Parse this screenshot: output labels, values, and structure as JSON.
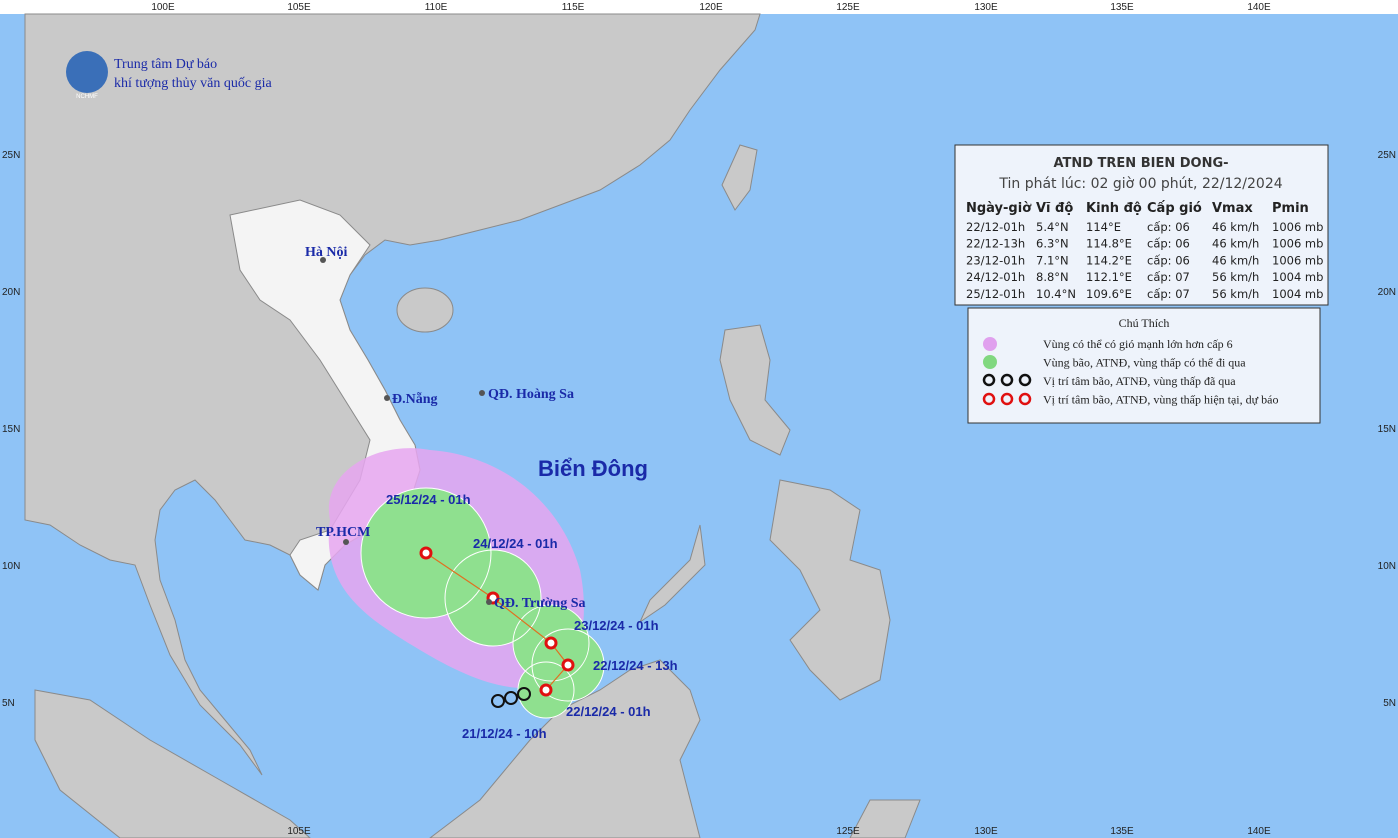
{
  "logo": {
    "line1": "Trung tâm Dự báo",
    "line2": "khí tượng thủy văn quốc gia",
    "abbr": "NCHMF"
  },
  "axes": {
    "top": [
      "100E",
      "105E",
      "110E",
      "115E",
      "120E",
      "125E",
      "130E",
      "135E",
      "140E"
    ],
    "bottom": [
      "105E",
      "125E",
      "130E",
      "135E",
      "140E"
    ],
    "left": [
      "25N",
      "20N",
      "15N",
      "10N",
      "5N"
    ],
    "right": [
      "25N",
      "20N",
      "15N",
      "10N",
      "5N"
    ]
  },
  "places": [
    "Hà Nội",
    "Đ.Nẵng",
    "QĐ. Hoàng Sa",
    "TP.HCM",
    "QĐ. Trường Sa"
  ],
  "region": "Biển Đông",
  "track_labels": [
    "25/12/24 - 01h",
    "24/12/24 - 01h",
    "23/12/24 - 01h",
    "22/12/24 - 13h",
    "22/12/24 - 01h",
    "21/12/24 - 10h"
  ],
  "info": {
    "title": "ATND TREN BIEN DONG-",
    "subtitle": "Tin phát lúc: 02 giờ 00 phút, 22/12/2024",
    "header": [
      "Ngày-giờ",
      "Vĩ độ",
      "Kinh độ",
      "Cấp gió",
      "Vmax",
      "Pmin"
    ],
    "rows": [
      [
        "22/12-01h",
        "5.4°N",
        "114°E",
        "cấp: 06",
        "46 km/h",
        "1006 mb"
      ],
      [
        "22/12-13h",
        "6.3°N",
        "114.8°E",
        "cấp: 06",
        "46 km/h",
        "1006 mb"
      ],
      [
        "23/12-01h",
        "7.1°N",
        "114.2°E",
        "cấp: 06",
        "46 km/h",
        "1006 mb"
      ],
      [
        "24/12-01h",
        "8.8°N",
        "112.1°E",
        "cấp: 07",
        "56 km/h",
        "1004 mb"
      ],
      [
        "25/12-01h",
        "10.4°N",
        "109.6°E",
        "cấp: 07",
        "56 km/h",
        "1004 mb"
      ]
    ]
  },
  "legend": {
    "title": "Chú Thích",
    "items": [
      "Vùng có thể có gió mạnh lớn hơn cấp 6",
      "Vùng bão, ATNĐ, vùng thấp có thể đi qua",
      "Vị trí tâm bão, ATNĐ, vùng thấp đã qua",
      "Vị trí tâm bão, ATNĐ, vùng thấp hiện tại, dự báo"
    ]
  }
}
